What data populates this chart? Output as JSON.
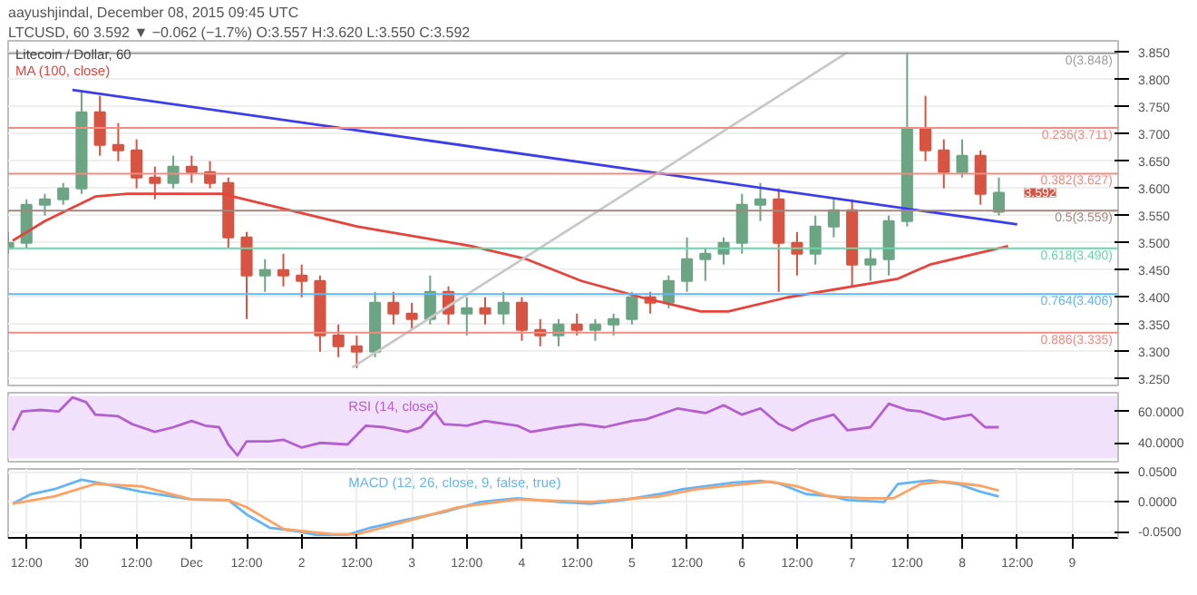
{
  "chart_data": [
    {
      "type": "candlestick",
      "title": "Litecoin / Dollar, 60",
      "annotations": [
        "aayushjindal, December 08, 2015 09:45 UTC",
        "LTCUSD, 60  3.592 ▼ −0.062 (−1.7%)  O:3.557 H:3.620 L:3.550 C:3.592",
        {
          "text": "3.592",
          "x": "2015-12-08T08:00",
          "y": 3.592
        }
      ],
      "x": [
        "2015-11-29T08:00",
        "2015-11-29T12:00",
        "2015-11-29T16:00",
        "2015-11-29T20:00",
        "2015-11-30T00:00",
        "2015-11-30T04:00",
        "2015-11-30T08:00",
        "2015-11-30T12:00",
        "2015-11-30T16:00",
        "2015-11-30T20:00",
        "2015-12-01T00:00",
        "2015-12-01T04:00",
        "2015-12-01T08:00",
        "2015-12-01T12:00",
        "2015-12-01T16:00",
        "2015-12-01T20:00",
        "2015-12-02T00:00",
        "2015-12-02T04:00",
        "2015-12-02T08:00",
        "2015-12-02T12:00",
        "2015-12-02T16:00",
        "2015-12-02T20:00",
        "2015-12-03T00:00",
        "2015-12-03T04:00",
        "2015-12-03T08:00",
        "2015-12-03T12:00",
        "2015-12-03T16:00",
        "2015-12-03T20:00",
        "2015-12-04T00:00",
        "2015-12-04T04:00",
        "2015-12-04T08:00",
        "2015-12-04T12:00",
        "2015-12-04T16:00",
        "2015-12-04T20:00",
        "2015-12-05T00:00",
        "2015-12-05T04:00",
        "2015-12-05T08:00",
        "2015-12-05T12:00",
        "2015-12-05T16:00",
        "2015-12-05T20:00",
        "2015-12-06T00:00",
        "2015-12-06T04:00",
        "2015-12-06T08:00",
        "2015-12-06T12:00",
        "2015-12-06T16:00",
        "2015-12-06T20:00",
        "2015-12-07T00:00",
        "2015-12-07T04:00",
        "2015-12-07T08:00",
        "2015-12-07T12:00",
        "2015-12-07T16:00",
        "2015-12-07T20:00",
        "2015-12-08T00:00",
        "2015-12-08T04:00",
        "2015-12-08T08:00"
      ],
      "ohlc": [
        [
          3.49,
          3.52,
          3.48,
          3.5
        ],
        [
          3.5,
          3.58,
          3.49,
          3.57
        ],
        [
          3.57,
          3.59,
          3.55,
          3.58
        ],
        [
          3.58,
          3.61,
          3.57,
          3.6
        ],
        [
          3.6,
          3.78,
          3.59,
          3.74
        ],
        [
          3.74,
          3.77,
          3.66,
          3.68
        ],
        [
          3.68,
          3.72,
          3.65,
          3.67
        ],
        [
          3.67,
          3.69,
          3.6,
          3.62
        ],
        [
          3.62,
          3.64,
          3.58,
          3.61
        ],
        [
          3.61,
          3.66,
          3.6,
          3.64
        ],
        [
          3.64,
          3.66,
          3.61,
          3.63
        ],
        [
          3.63,
          3.65,
          3.6,
          3.61
        ],
        [
          3.61,
          3.62,
          3.49,
          3.51
        ],
        [
          3.51,
          3.52,
          3.36,
          3.44
        ],
        [
          3.44,
          3.47,
          3.41,
          3.45
        ],
        [
          3.45,
          3.48,
          3.42,
          3.44
        ],
        [
          3.44,
          3.46,
          3.4,
          3.43
        ],
        [
          3.43,
          3.44,
          3.3,
          3.33
        ],
        [
          3.33,
          3.35,
          3.29,
          3.31
        ],
        [
          3.31,
          3.33,
          3.27,
          3.3
        ],
        [
          3.3,
          3.41,
          3.29,
          3.39
        ],
        [
          3.39,
          3.41,
          3.35,
          3.37
        ],
        [
          3.37,
          3.39,
          3.34,
          3.36
        ],
        [
          3.36,
          3.44,
          3.35,
          3.41
        ],
        [
          3.41,
          3.42,
          3.35,
          3.37
        ],
        [
          3.37,
          3.4,
          3.33,
          3.38
        ],
        [
          3.38,
          3.4,
          3.35,
          3.37
        ],
        [
          3.37,
          3.41,
          3.35,
          3.39
        ],
        [
          3.39,
          3.4,
          3.32,
          3.34
        ],
        [
          3.34,
          3.36,
          3.31,
          3.33
        ],
        [
          3.33,
          3.36,
          3.31,
          3.35
        ],
        [
          3.35,
          3.37,
          3.33,
          3.34
        ],
        [
          3.34,
          3.36,
          3.32,
          3.35
        ],
        [
          3.35,
          3.37,
          3.33,
          3.36
        ],
        [
          3.36,
          3.41,
          3.35,
          3.4
        ],
        [
          3.4,
          3.41,
          3.37,
          3.39
        ],
        [
          3.39,
          3.44,
          3.38,
          3.43
        ],
        [
          3.43,
          3.51,
          3.41,
          3.47
        ],
        [
          3.47,
          3.49,
          3.43,
          3.48
        ],
        [
          3.48,
          3.51,
          3.46,
          3.5
        ],
        [
          3.5,
          3.59,
          3.48,
          3.57
        ],
        [
          3.57,
          3.61,
          3.54,
          3.58
        ],
        [
          3.58,
          3.6,
          3.41,
          3.5
        ],
        [
          3.5,
          3.52,
          3.44,
          3.48
        ],
        [
          3.48,
          3.55,
          3.46,
          3.53
        ],
        [
          3.53,
          3.58,
          3.51,
          3.56
        ],
        [
          3.56,
          3.58,
          3.42,
          3.46
        ],
        [
          3.46,
          3.49,
          3.43,
          3.47
        ],
        [
          3.47,
          3.55,
          3.44,
          3.54
        ],
        [
          3.54,
          3.85,
          3.53,
          3.71
        ],
        [
          3.71,
          3.77,
          3.65,
          3.67
        ],
        [
          3.67,
          3.69,
          3.6,
          3.63
        ],
        [
          3.63,
          3.69,
          3.62,
          3.66
        ],
        [
          3.66,
          3.67,
          3.57,
          3.59
        ],
        [
          3.557,
          3.62,
          3.55,
          3.592
        ]
      ],
      "series": [
        {
          "type": "line",
          "name": "MA (100, close)",
          "color": "#e8433b",
          "x": [
            "2015-11-29T09:00",
            "2015-11-29T16:00",
            "2015-11-30T03:00",
            "2015-11-30T10:00",
            "2015-12-01T07:00",
            "2015-12-01T09:00",
            "2015-12-02T12:00",
            "2015-12-03T13:00",
            "2015-12-04T01:00",
            "2015-12-04T13:00",
            "2015-12-05T02:00",
            "2015-12-05T15:00",
            "2015-12-05T21:00",
            "2015-12-06T10:00",
            "2015-12-07T10:00",
            "2015-12-07T17:00",
            "2015-12-08T10:00"
          ],
          "values": [
            3.504,
            3.54,
            3.585,
            3.59,
            3.59,
            3.585,
            3.53,
            3.494,
            3.47,
            3.43,
            3.4,
            3.374,
            3.374,
            3.4,
            3.434,
            3.46,
            3.494
          ]
        },
        {
          "type": "line",
          "color": "#3d3df0",
          "x": [
            "2015-11-29T22:00",
            "2015-12-08T12:00"
          ],
          "values": [
            3.781,
            3.534
          ]
        },
        {
          "type": "line",
          "color": "#c8c8c8",
          "x": [
            "2015-12-02T11:00",
            "2015-12-06T23:00"
          ],
          "values": [
            3.271,
            3.85
          ]
        }
      ],
      "ref_lines": [
        {
          "axis": "y",
          "value": 3.848,
          "label": "0(3.848)",
          "color": "#9e9e9e"
        },
        {
          "axis": "y",
          "value": 3.711,
          "label": "0.236(3.711)",
          "color": "#f28b82"
        },
        {
          "axis": "y",
          "value": 3.627,
          "label": "0.382(3.627)",
          "color": "#f28b82"
        },
        {
          "axis": "y",
          "value": 3.559,
          "label": "0.5(3.559)",
          "color": "#a1887f"
        },
        {
          "axis": "y",
          "value": 3.49,
          "label": "0.618(3.490)",
          "color": "#66d9a8"
        },
        {
          "axis": "y",
          "value": 3.406,
          "label": "0.764(3.406)",
          "color": "#64b5f6"
        },
        {
          "axis": "y",
          "value": 3.335,
          "label": "0.886(3.335)",
          "color": "#f28b82"
        }
      ],
      "xlim": [
        "2015-11-29T08:00",
        "2015-12-09T10:00"
      ],
      "ylim": [
        3.238,
        3.871
      ],
      "yticks": [
        {
          "value": 3.25,
          "label": "3.250"
        },
        {
          "value": 3.3,
          "label": "3.300"
        },
        {
          "value": 3.35,
          "label": "3.350"
        },
        {
          "value": 3.4,
          "label": "3.400"
        },
        {
          "value": 3.45,
          "label": "3.450"
        },
        {
          "value": 3.5,
          "label": "3.500"
        },
        {
          "value": 3.55,
          "label": "3.550"
        },
        {
          "value": 3.6,
          "label": "3.600"
        },
        {
          "value": 3.65,
          "label": "3.650"
        },
        {
          "value": 3.7,
          "label": "3.700"
        },
        {
          "value": 3.75,
          "label": "3.750"
        },
        {
          "value": 3.8,
          "label": "3.800"
        },
        {
          "value": 3.85,
          "label": "3.850"
        }
      ],
      "grid": true,
      "tick_labels": "y"
    },
    {
      "type": "line",
      "series": [
        {
          "name": "RSI (14, close)",
          "color": "#b45fd0",
          "x": [
            "2015-11-29T09:00",
            "2015-11-29T11:00",
            "2015-11-29T15:00",
            "2015-11-29T19:00",
            "2015-11-29T22:00",
            "2015-11-30T01:00",
            "2015-11-30T03:00",
            "2015-11-30T08:00",
            "2015-11-30T11:00",
            "2015-11-30T16:00",
            "2015-11-30T20:00",
            "2015-12-01T00:00",
            "2015-12-01T03:00",
            "2015-12-01T06:00",
            "2015-12-01T08:00",
            "2015-12-01T10:00",
            "2015-12-01T12:00",
            "2015-12-01T17:00",
            "2015-12-01T20:00",
            "2015-12-02T00:00",
            "2015-12-02T04:00",
            "2015-12-02T10:00",
            "2015-12-02T14:00",
            "2015-12-02T18:00",
            "2015-12-02T23:00",
            "2015-12-03T02:00",
            "2015-12-03T05:00",
            "2015-12-03T07:00",
            "2015-12-03T12:00",
            "2015-12-03T16:00",
            "2015-12-03T23:00",
            "2015-12-04T02:00",
            "2015-12-04T08:00",
            "2015-12-04T13:00",
            "2015-12-04T18:00",
            "2015-12-05T00:00",
            "2015-12-05T03:00",
            "2015-12-05T10:00",
            "2015-12-05T16:00",
            "2015-12-05T20:00",
            "2015-12-06T00:00",
            "2015-12-06T04:00",
            "2015-12-06T08:00",
            "2015-12-06T11:00",
            "2015-12-06T15:00",
            "2015-12-06T20:00",
            "2015-12-06T23:00",
            "2015-12-07T04:00",
            "2015-12-07T08:00",
            "2015-12-07T12:00",
            "2015-12-07T15:00",
            "2015-12-07T20:00",
            "2015-12-08T02:00",
            "2015-12-08T05:00",
            "2015-12-08T08:00"
          ],
          "values": [
            48,
            60,
            61,
            60,
            69,
            66,
            58,
            57,
            52,
            47,
            50,
            54,
            51,
            50,
            39,
            32,
            41,
            41,
            42,
            37,
            40,
            39,
            51,
            50,
            47,
            50,
            60,
            52,
            51,
            54,
            51,
            47,
            50,
            52,
            50,
            54,
            55,
            62,
            59,
            64,
            58,
            62,
            52,
            48,
            54,
            58,
            48,
            50,
            65,
            61,
            60,
            55,
            58,
            50,
            50
          ]
        }
      ],
      "bands": [
        {
          "axis": "y",
          "from": 30,
          "to": 70,
          "color": "#f1e1fb"
        }
      ],
      "xlim": [
        "2015-11-29T08:00",
        "2015-12-09T10:00"
      ],
      "ylim": [
        28,
        72
      ],
      "yticks": [
        {
          "value": 40,
          "label": "40.0000"
        },
        {
          "value": 60,
          "label": "60.0000"
        }
      ],
      "grid": true,
      "tick_labels": "y"
    },
    {
      "type": "line",
      "series": [
        {
          "name": "MACD (12, 26, close, 9, false, true)",
          "color": "#64b5f6",
          "x": [
            "2015-11-29T09:00",
            "2015-11-29T13:00",
            "2015-11-29T18:00",
            "2015-11-30T00:00",
            "2015-11-30T05:00",
            "2015-11-30T13:00",
            "2015-12-01T00:00",
            "2015-12-01T08:00",
            "2015-12-01T12:00",
            "2015-12-01T17:00",
            "2015-12-01T23:00",
            "2015-12-02T03:00",
            "2015-12-02T10:00",
            "2015-12-02T15:00",
            "2015-12-02T22:00",
            "2015-12-03T07:00",
            "2015-12-03T15:00",
            "2015-12-03T23:00",
            "2015-12-04T08:00",
            "2015-12-04T15:00",
            "2015-12-04T22:00",
            "2015-12-05T06:00",
            "2015-12-05T11:00",
            "2015-12-05T22:00",
            "2015-12-06T04:00",
            "2015-12-06T08:00",
            "2015-12-06T14:00",
            "2015-12-06T20:00",
            "2015-12-06T23:00",
            "2015-12-07T07:00",
            "2015-12-07T10:00",
            "2015-12-07T17:00",
            "2015-12-07T23:00",
            "2015-12-08T04:00",
            "2015-12-08T08:00"
          ],
          "values": [
            -0.003,
            0.013,
            0.021,
            0.037,
            0.03,
            0.017,
            0.004,
            0.003,
            -0.021,
            -0.043,
            -0.049,
            -0.055,
            -0.055,
            -0.043,
            -0.031,
            -0.017,
            0,
            0.006,
            0,
            -0.003,
            0.003,
            0.013,
            0.021,
            0.032,
            0.035,
            0.031,
            0.013,
            0.009,
            0.003,
            0,
            0.03,
            0.036,
            0.03,
            0.017,
            0.009
          ]
        },
        {
          "color": "#ffa261",
          "x": [
            "2015-11-29T09:00",
            "2015-11-29T18:00",
            "2015-11-30T03:00",
            "2015-11-30T13:00",
            "2015-12-01T00:00",
            "2015-12-01T08:00",
            "2015-12-01T12:00",
            "2015-12-01T20:00",
            "2015-12-02T07:00",
            "2015-12-02T12:00",
            "2015-12-02T22:00",
            "2015-12-03T10:00",
            "2015-12-03T23:00",
            "2015-12-04T15:00",
            "2015-12-05T06:00",
            "2015-12-05T14:00",
            "2015-12-06T06:00",
            "2015-12-06T12:00",
            "2015-12-06T19:00",
            "2015-12-07T03:00",
            "2015-12-07T09:00",
            "2015-12-07T15:00",
            "2015-12-07T20:00",
            "2015-12-08T04:00",
            "2015-12-08T08:00"
          ],
          "values": [
            -0.003,
            0.009,
            0.03,
            0.026,
            0.004,
            0.003,
            -0.009,
            -0.045,
            -0.054,
            -0.054,
            -0.034,
            -0.009,
            0.004,
            0,
            0.009,
            0.021,
            0.034,
            0.026,
            0.009,
            0.006,
            0.006,
            0.03,
            0.034,
            0.027,
            0.019
          ]
        }
      ],
      "xlim": [
        "2015-11-29T08:00",
        "2015-12-09T10:00"
      ],
      "ylim": [
        -0.06,
        0.055
      ],
      "yticks": [
        {
          "value": -0.05,
          "label": "-0.0500"
        },
        {
          "value": 0,
          "label": "0.0000"
        },
        {
          "value": 0.05,
          "label": "0.0500"
        }
      ],
      "xticks": [
        {
          "value": "2015-11-29T12:00",
          "label": "12:00"
        },
        {
          "value": "2015-11-30T00:00",
          "label": "30"
        },
        {
          "value": "2015-11-30T12:00",
          "label": "12:00"
        },
        {
          "value": "2015-12-01T00:00",
          "label": "Dec"
        },
        {
          "value": "2015-12-01T12:00",
          "label": "12:00"
        },
        {
          "value": "2015-12-02T00:00",
          "label": "2"
        },
        {
          "value": "2015-12-02T12:00",
          "label": "12:00"
        },
        {
          "value": "2015-12-03T00:00",
          "label": "3"
        },
        {
          "value": "2015-12-03T12:00",
          "label": "12:00"
        },
        {
          "value": "2015-12-04T00:00",
          "label": "4"
        },
        {
          "value": "2015-12-04T12:00",
          "label": "12:00"
        },
        {
          "value": "2015-12-05T00:00",
          "label": "5"
        },
        {
          "value": "2015-12-05T12:00",
          "label": "12:00"
        },
        {
          "value": "2015-12-06T00:00",
          "label": "6"
        },
        {
          "value": "2015-12-06T12:00",
          "label": "12:00"
        },
        {
          "value": "2015-12-07T00:00",
          "label": "7"
        },
        {
          "value": "2015-12-07T12:00",
          "label": "12:00"
        },
        {
          "value": "2015-12-08T00:00",
          "label": "8"
        },
        {
          "value": "2015-12-08T12:00",
          "label": "12:00"
        },
        {
          "value": "2015-12-09T00:00",
          "label": "9"
        }
      ],
      "grid": true
    }
  ]
}
